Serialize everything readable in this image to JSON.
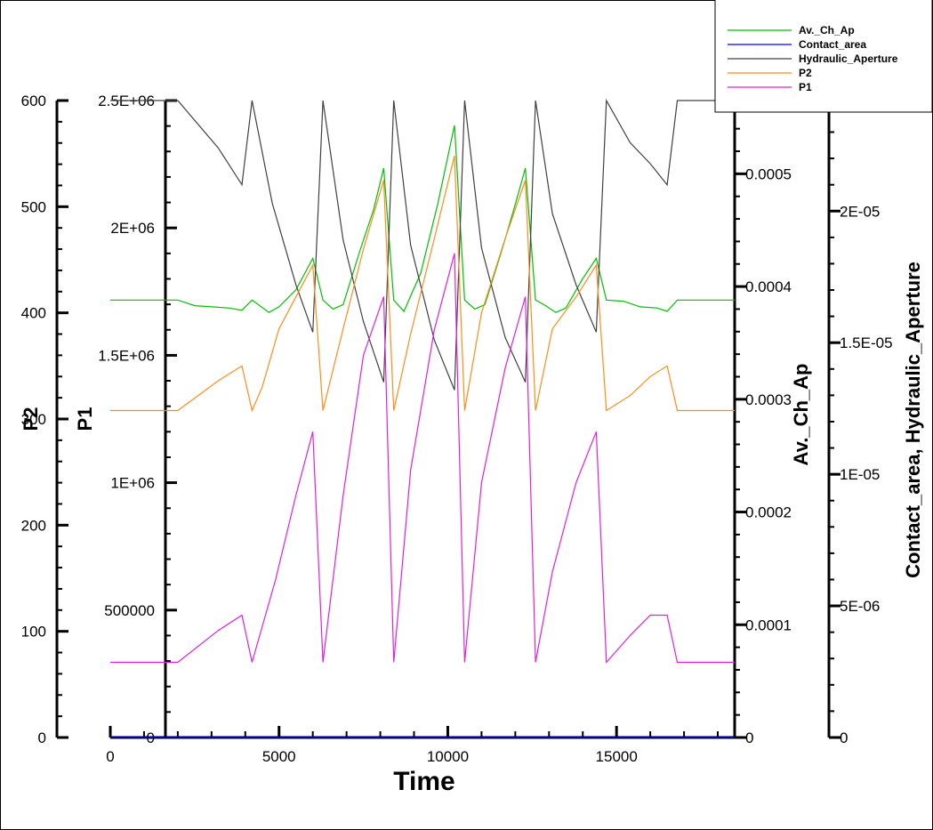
{
  "chart_data": {
    "type": "line",
    "xlabel": "Time",
    "xlim": [
      0,
      18500
    ],
    "x_ticks": [
      "0",
      "5000",
      "10000",
      "15000"
    ],
    "x_tick_values": [
      0,
      5000,
      10000,
      15000
    ],
    "axes": [
      {
        "id": "p2",
        "label": "P2",
        "range": [
          0,
          600
        ],
        "tick_values": [
          0,
          100,
          200,
          300,
          400,
          500,
          600
        ],
        "tick_labels": [
          "0",
          "100",
          "200",
          "300",
          "400",
          "500",
          "600"
        ]
      },
      {
        "id": "p1",
        "label": "P1",
        "range": [
          0,
          2500000
        ],
        "tick_values": [
          0,
          500000,
          1000000,
          1500000,
          2000000,
          2500000
        ],
        "tick_labels": [
          "0",
          "500000",
          "1E+06",
          "1.5E+06",
          "2E+06",
          "2.5E+06"
        ]
      },
      {
        "id": "av",
        "label": "Av._Ch_Ap",
        "range": [
          0,
          0.000565
        ],
        "tick_values": [
          0,
          0.0001,
          0.0002,
          0.0003,
          0.0004,
          0.0005
        ],
        "tick_labels": [
          "0",
          "0.0001",
          "0.0002",
          "0.0003",
          "0.0004",
          "0.0005"
        ]
      },
      {
        "id": "ca",
        "label": "Contact_area, Hydraulic_Aperture",
        "range": [
          0,
          2.42e-05
        ],
        "tick_values": [
          0,
          5e-06,
          1e-05,
          1.5e-05,
          2e-05
        ],
        "tick_labels": [
          "0",
          "5E-06",
          "1E-05",
          "1.5E-05",
          "2E-05"
        ]
      }
    ],
    "legend": {
      "position": "top-right"
    },
    "series": [
      {
        "name": "Av._Ch_Ap",
        "color": "#00c000",
        "axis": "av",
        "x": [
          0,
          2000,
          2500,
          3000,
          3500,
          3900,
          4200,
          4700,
          5000,
          5500,
          6000,
          6300,
          6600,
          6900,
          7400,
          7800,
          8100,
          8400,
          8700,
          9200,
          9700,
          10200,
          10500,
          10800,
          11100,
          11600,
          12000,
          12300,
          12600,
          12900,
          13200,
          13500,
          14000,
          14400,
          14700,
          15200,
          15700,
          16200,
          16500,
          16800,
          17300,
          18500
        ],
        "y": [
          0.000388,
          0.000388,
          0.000383,
          0.000382,
          0.000381,
          0.000379,
          0.000388,
          0.000377,
          0.000382,
          0.000397,
          0.000425,
          0.000388,
          0.00038,
          0.000384,
          0.000432,
          0.000468,
          0.000505,
          0.000388,
          0.000378,
          0.000412,
          0.000473,
          0.000543,
          0.000388,
          0.00038,
          0.000384,
          0.000432,
          0.000473,
          0.000505,
          0.000388,
          0.000383,
          0.000377,
          0.000381,
          0.000407,
          0.000425,
          0.000388,
          0.000387,
          0.000382,
          0.000381,
          0.000378,
          0.000388,
          0.000388,
          0.000388
        ]
      },
      {
        "name": "Contact_area",
        "color": "#0000ff",
        "axis": "ca",
        "x": [
          0,
          18500
        ],
        "y": [
          0,
          0
        ]
      },
      {
        "name": "Hydraulic_Aperture",
        "color": "#404040",
        "axis": "ca",
        "x": [
          0,
          2000,
          3200,
          3900,
          4200,
          4800,
          5500,
          6000,
          6300,
          6900,
          7500,
          8100,
          8400,
          8900,
          9600,
          10200,
          10500,
          11000,
          11700,
          12300,
          12600,
          13100,
          13800,
          14400,
          14700,
          15400,
          16000,
          16500,
          16800,
          18500
        ],
        "y": [
          2.42e-05,
          2.42e-05,
          2.24e-05,
          2.1e-05,
          2.42e-05,
          2.03e-05,
          1.72e-05,
          1.54e-05,
          2.42e-05,
          1.89e-05,
          1.58e-05,
          1.35e-05,
          2.42e-05,
          1.87e-05,
          1.51e-05,
          1.32e-05,
          2.42e-05,
          1.86e-05,
          1.52e-05,
          1.35e-05,
          2.42e-05,
          1.99e-05,
          1.72e-05,
          1.54e-05,
          2.42e-05,
          2.26e-05,
          2.18e-05,
          2.1e-05,
          2.42e-05,
          2.42e-05
        ]
      },
      {
        "name": "P2",
        "color": "#ff8c1a",
        "axis": "p2",
        "x": [
          0,
          2000,
          3200,
          3900,
          4200,
          4500,
          5000,
          5500,
          6000,
          6300,
          6900,
          7500,
          8100,
          8400,
          8900,
          9600,
          10200,
          10500,
          11000,
          11700,
          12300,
          12600,
          13100,
          13800,
          14400,
          14700,
          15400,
          16000,
          16500,
          16800,
          18500
        ],
        "y": [
          308,
          308,
          336,
          350,
          308,
          330,
          385,
          415,
          445,
          308,
          385,
          460,
          525,
          308,
          380,
          470,
          548,
          308,
          400,
          470,
          525,
          308,
          385,
          415,
          445,
          308,
          322,
          340,
          350,
          308,
          308
        ]
      },
      {
        "name": "P1",
        "color": "#e020e0",
        "axis": "p1",
        "x": [
          0,
          2000,
          3200,
          3900,
          4200,
          4900,
          5500,
          6000,
          6300,
          6900,
          7500,
          8100,
          8400,
          8900,
          9600,
          10200,
          10500,
          11000,
          11700,
          12300,
          12600,
          13100,
          13800,
          14400,
          14700,
          15400,
          16000,
          16500,
          16800,
          18500
        ],
        "y": [
          295000,
          295000,
          420000,
          480000,
          295000,
          620000,
          950000,
          1200000,
          295000,
          950000,
          1500000,
          1730000,
          295000,
          1050000,
          1600000,
          1900000,
          295000,
          1000000,
          1450000,
          1730000,
          295000,
          650000,
          1000000,
          1200000,
          295000,
          400000,
          480000,
          480000,
          295000,
          295000
        ]
      }
    ]
  }
}
